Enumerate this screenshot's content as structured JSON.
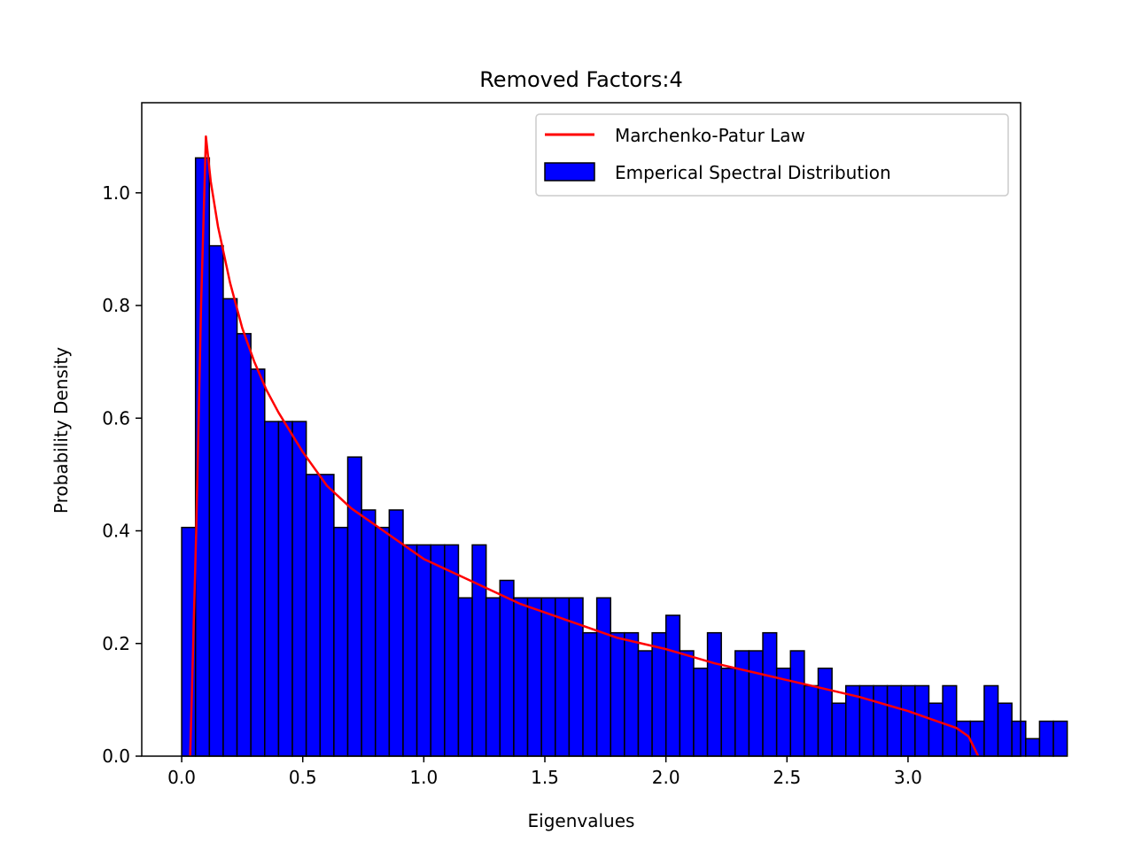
{
  "chart_data": {
    "type": "bar",
    "title": "Removed Factors:4",
    "xlabel": "Eigenvalues",
    "ylabel": "Probability Density",
    "xlim": [
      -0.165,
      3.465
    ],
    "ylim": [
      0,
      1.16
    ],
    "xticks": [
      0.0,
      0.5,
      1.0,
      1.5,
      2.0,
      2.5,
      3.0
    ],
    "xtick_labels": [
      "0.0",
      "0.5",
      "1.0",
      "1.5",
      "2.0",
      "2.5",
      "3.0"
    ],
    "yticks": [
      0.0,
      0.2,
      0.4,
      0.6,
      0.8,
      1.0
    ],
    "ytick_labels": [
      "0.0",
      "0.2",
      "0.4",
      "0.6",
      "0.8",
      "1.0"
    ],
    "grid": false,
    "legend_position": "top-right",
    "histogram": {
      "name": "Emperical Spectral Distribution",
      "bin_start": 0.0,
      "bin_width": 0.05715,
      "values": [
        0.406,
        1.062,
        0.906,
        0.812,
        0.75,
        0.687,
        0.594,
        0.594,
        0.594,
        0.5,
        0.5,
        0.406,
        0.531,
        0.437,
        0.406,
        0.437,
        0.375,
        0.375,
        0.375,
        0.375,
        0.281,
        0.375,
        0.281,
        0.312,
        0.281,
        0.281,
        0.281,
        0.281,
        0.281,
        0.219,
        0.281,
        0.219,
        0.219,
        0.187,
        0.219,
        0.25,
        0.187,
        0.156,
        0.219,
        0.156,
        0.187,
        0.187,
        0.219,
        0.156,
        0.187,
        0.125,
        0.156,
        0.094,
        0.125,
        0.125,
        0.125,
        0.125,
        0.125,
        0.125,
        0.094,
        0.125,
        0.062,
        0.062,
        0.125,
        0.094,
        0.062,
        0.031,
        0.062,
        0.062
      ],
      "fill_color": "#0000ff",
      "edge_color": "#000000"
    },
    "curve": {
      "name": "Marchenko-Patur Law",
      "color": "#ff0000",
      "x": [
        0.035,
        0.06,
        0.08,
        0.1,
        0.12,
        0.15,
        0.2,
        0.25,
        0.3,
        0.35,
        0.4,
        0.5,
        0.6,
        0.7,
        0.8,
        0.9,
        1.0,
        1.2,
        1.4,
        1.6,
        1.8,
        2.0,
        2.2,
        2.4,
        2.6,
        2.8,
        3.0,
        3.1,
        3.2,
        3.25,
        3.29
      ],
      "y": [
        0.0,
        0.4,
        0.8,
        1.1,
        1.02,
        0.94,
        0.84,
        0.76,
        0.7,
        0.65,
        0.61,
        0.54,
        0.48,
        0.44,
        0.41,
        0.38,
        0.35,
        0.31,
        0.27,
        0.24,
        0.21,
        0.19,
        0.165,
        0.145,
        0.125,
        0.105,
        0.08,
        0.065,
        0.05,
        0.035,
        0.0
      ]
    }
  }
}
